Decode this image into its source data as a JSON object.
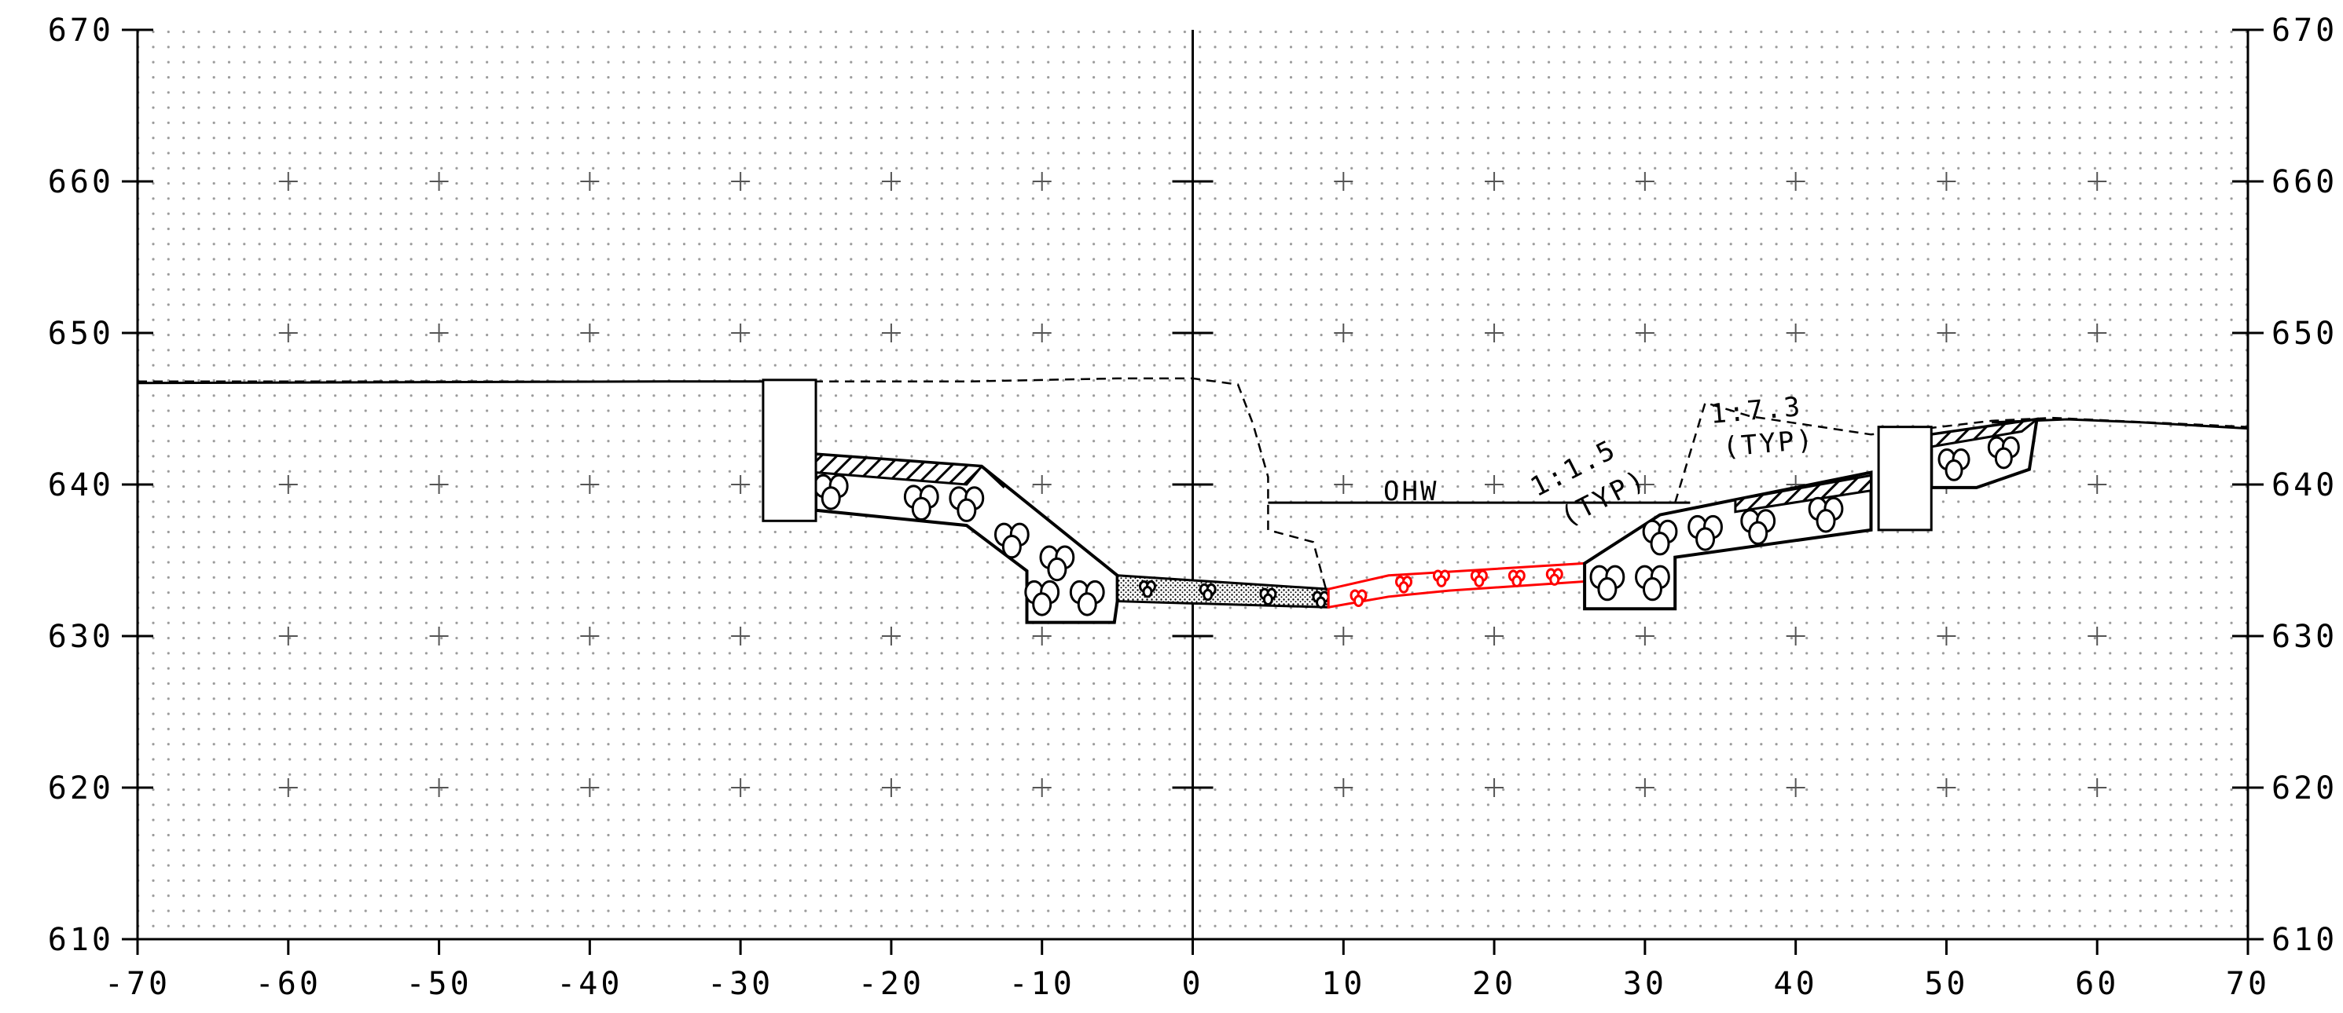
{
  "x_axis": {
    "min": -70,
    "max": 70,
    "step": 10,
    "ticks": [
      "-70",
      "-60",
      "-50",
      "-40",
      "-30",
      "-20",
      "-10",
      "0",
      "10",
      "20",
      "30",
      "40",
      "50",
      "60",
      "70"
    ]
  },
  "y_axis": {
    "min": 610,
    "max": 670,
    "step": 10,
    "left_ticks": [
      "610",
      "620",
      "630",
      "640",
      "650",
      "660",
      "670"
    ],
    "right_ticks": [
      "610",
      "620",
      "630",
      "640",
      "650",
      "660",
      "670"
    ]
  },
  "annotations": {
    "ohw": "OHW",
    "slope_left": "1:1.5",
    "slope_left_typ": "(TYP)",
    "slope_right": "1:7.3",
    "slope_right_typ": "(TYP)"
  },
  "ohw_line": {
    "x": [
      5,
      33
    ],
    "y": 638.8
  },
  "existing_ground": [
    [
      -70,
      646.8
    ],
    [
      -25,
      646.8
    ],
    [
      -15,
      646.8
    ],
    [
      -5,
      647
    ],
    [
      0,
      647
    ],
    [
      3,
      646.6
    ],
    [
      4,
      644
    ],
    [
      5,
      640.5
    ],
    [
      5,
      637
    ],
    [
      8,
      636.2
    ],
    [
      9,
      632.5
    ]
  ],
  "proposed_ground": [
    [
      -70,
      646.7
    ],
    [
      -35,
      646.8
    ],
    [
      -26,
      646.8
    ]
  ],
  "upper_bank_dashed": [
    [
      32,
      638.8
    ],
    [
      34,
      645.4
    ],
    [
      37,
      644.5
    ],
    [
      45,
      643.3
    ],
    [
      47,
      643.5
    ],
    [
      53,
      644.2
    ],
    [
      57,
      644.4
    ],
    [
      70,
      643.8
    ]
  ],
  "upper_bank_solid": [
    [
      53,
      644.1
    ],
    [
      58,
      644.3
    ],
    [
      63,
      644.1
    ],
    [
      70,
      643.7
    ]
  ],
  "walls": [
    {
      "name": "left-wall",
      "x": [
        -28.5,
        -25.0
      ],
      "y": [
        637.6,
        646.9
      ]
    },
    {
      "name": "right-wall",
      "x": [
        45.5,
        49.0
      ],
      "y": [
        637.0,
        643.8
      ]
    }
  ],
  "riprap_left": [
    [
      -25,
      642
    ],
    [
      -14,
      641.2
    ],
    [
      -5,
      634
    ],
    [
      -5,
      632.3
    ],
    [
      -5.2,
      630.9
    ],
    [
      -11,
      630.9
    ],
    [
      -11,
      634.3
    ],
    [
      -15,
      637.3
    ],
    [
      -25,
      638.3
    ]
  ],
  "riprap_right": [
    [
      26,
      634.8
    ],
    [
      31,
      638
    ],
    [
      45,
      640.8
    ],
    [
      45,
      637
    ],
    [
      32,
      635.2
    ],
    [
      32,
      631.8
    ],
    [
      26,
      631.8
    ]
  ],
  "riprap_far_right": [
    [
      49,
      643.3
    ],
    [
      56,
      644.3
    ],
    [
      55.5,
      641
    ],
    [
      52,
      639.8
    ],
    [
      49,
      639.8
    ]
  ],
  "concrete_channel": [
    [
      -5,
      634
    ],
    [
      9,
      633.1
    ],
    [
      9,
      631.9
    ],
    [
      -5,
      632.3
    ]
  ],
  "red_channel": [
    [
      9,
      633.1
    ],
    [
      13,
      634
    ],
    [
      26,
      634.8
    ],
    [
      26,
      633.6
    ],
    [
      17,
      633
    ],
    [
      13,
      632.6
    ],
    [
      9,
      631.9
    ]
  ],
  "colors": {
    "line": "#000000",
    "red": "#ff0000",
    "grid_dot": "#9a9a9a"
  }
}
